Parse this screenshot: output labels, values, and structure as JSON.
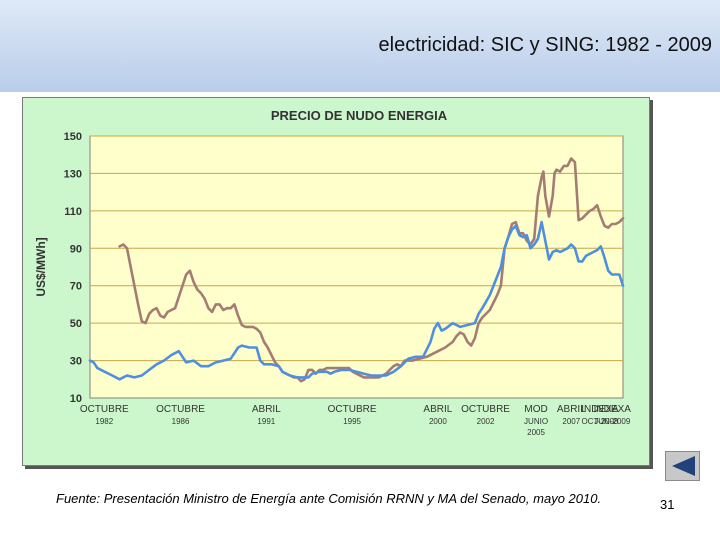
{
  "slide": {
    "title": "electricidad: SIC y SING: 1982 - 2009",
    "footer": "Fuente: Presentación Ministro de Energía ante Comisión RRNN y MA del Senado, mayo 2010.",
    "page_number": "31"
  },
  "navigation": {
    "back_icon": "back-arrow-icon"
  },
  "colors": {
    "plot_bg": "#ffffcc",
    "frame_bg": "#ccf7cc",
    "grid": "#c9a64a",
    "sic": "#4f8fe0",
    "sing": "#a57c74"
  },
  "chart_data": {
    "type": "line",
    "title": "PRECIO DE NUDO ENERGIA",
    "xlabel": "",
    "ylabel": "US$/MWh]",
    "ylim": [
      10,
      150
    ],
    "yticks": [
      10,
      30,
      50,
      70,
      90,
      110,
      130,
      150
    ],
    "x_tick_labels": [
      {
        "x": 1982.75,
        "lines": [
          "OCTUBRE",
          "1982"
        ]
      },
      {
        "x": 1986.75,
        "lines": [
          "OCTUBRE",
          "1986"
        ]
      },
      {
        "x": 1991.25,
        "lines": [
          "ABRIL",
          "1991"
        ]
      },
      {
        "x": 1995.75,
        "lines": [
          "OCTUBRE",
          "1995"
        ]
      },
      {
        "x": 2000.25,
        "lines": [
          "ABRIL",
          "2000"
        ]
      },
      {
        "x": 2002.75,
        "lines": [
          "OCTUBRE",
          "2002"
        ]
      },
      {
        "x": 2005.4,
        "lines": [
          "MOD",
          "JUNIO",
          "2005"
        ]
      },
      {
        "x": 2007.25,
        "lines": [
          "ABRIL",
          "2007"
        ]
      },
      {
        "x": 2008.75,
        "lines": [
          "INDEXA",
          "OCT-2008"
        ]
      },
      {
        "x": 2009.4,
        "lines": [
          "INDEXA",
          "JUN-2009"
        ]
      }
    ],
    "series": [
      {
        "name": "SIC",
        "color": "#4f8fe0",
        "points": [
          [
            0,
            30
          ],
          [
            2,
            29
          ],
          [
            4,
            26
          ],
          [
            8,
            24
          ],
          [
            12,
            22
          ],
          [
            16,
            20
          ],
          [
            20,
            22
          ],
          [
            24,
            21
          ],
          [
            28,
            22
          ],
          [
            32,
            25
          ],
          [
            36,
            28
          ],
          [
            40,
            30
          ],
          [
            44,
            33
          ],
          [
            48,
            35
          ],
          [
            50,
            32
          ],
          [
            52,
            29
          ],
          [
            56,
            30
          ],
          [
            60,
            27
          ],
          [
            64,
            27
          ],
          [
            68,
            29
          ],
          [
            72,
            30
          ],
          [
            76,
            31
          ],
          [
            78,
            34
          ],
          [
            80,
            37
          ],
          [
            82,
            38
          ],
          [
            86,
            37
          ],
          [
            90,
            37
          ],
          [
            92,
            30
          ],
          [
            94,
            28
          ],
          [
            98,
            28
          ],
          [
            102,
            27
          ],
          [
            104,
            24
          ],
          [
            108,
            22
          ],
          [
            112,
            21
          ],
          [
            116,
            21
          ],
          [
            118,
            21
          ],
          [
            120,
            23
          ],
          [
            124,
            24
          ],
          [
            128,
            24
          ],
          [
            130,
            23
          ],
          [
            132,
            24
          ],
          [
            136,
            25
          ],
          [
            140,
            25
          ],
          [
            144,
            24
          ],
          [
            148,
            23
          ],
          [
            152,
            22
          ],
          [
            156,
            22
          ],
          [
            160,
            22
          ],
          [
            164,
            24
          ],
          [
            168,
            27
          ],
          [
            172,
            31
          ],
          [
            176,
            32
          ],
          [
            180,
            32
          ],
          [
            184,
            40
          ],
          [
            186,
            47
          ],
          [
            188,
            50
          ],
          [
            190,
            46
          ],
          [
            192,
            47
          ],
          [
            196,
            50
          ],
          [
            200,
            48
          ],
          [
            204,
            49
          ],
          [
            208,
            50
          ],
          [
            210,
            55
          ],
          [
            212,
            58
          ],
          [
            216,
            65
          ],
          [
            220,
            75
          ],
          [
            222,
            80
          ],
          [
            224,
            90
          ],
          [
            226,
            96
          ],
          [
            228,
            100
          ],
          [
            230,
            102
          ],
          [
            232,
            97
          ],
          [
            234,
            96
          ],
          [
            236,
            97
          ],
          [
            238,
            90
          ],
          [
            240,
            92
          ],
          [
            242,
            95
          ],
          [
            244,
            104
          ],
          [
            246,
            94
          ],
          [
            248,
            84
          ],
          [
            250,
            88
          ],
          [
            252,
            89
          ],
          [
            254,
            88
          ],
          [
            256,
            89
          ],
          [
            258,
            90
          ],
          [
            260,
            92
          ],
          [
            262,
            90
          ],
          [
            264,
            83
          ],
          [
            266,
            83
          ],
          [
            268,
            86
          ],
          [
            270,
            87
          ],
          [
            272,
            88
          ],
          [
            274,
            89
          ],
          [
            276,
            91
          ],
          [
            278,
            85
          ],
          [
            280,
            78
          ],
          [
            282,
            76
          ],
          [
            284,
            76
          ],
          [
            286,
            76
          ],
          [
            288,
            70
          ]
        ]
      },
      {
        "name": "SING",
        "color": "#a57c74",
        "points": [
          [
            16,
            91
          ],
          [
            18,
            92
          ],
          [
            20,
            90
          ],
          [
            22,
            80
          ],
          [
            24,
            70
          ],
          [
            26,
            60
          ],
          [
            28,
            51
          ],
          [
            30,
            50
          ],
          [
            32,
            55
          ],
          [
            34,
            57
          ],
          [
            36,
            58
          ],
          [
            38,
            54
          ],
          [
            40,
            53
          ],
          [
            42,
            56
          ],
          [
            44,
            57
          ],
          [
            46,
            58
          ],
          [
            48,
            64
          ],
          [
            50,
            70
          ],
          [
            52,
            76
          ],
          [
            54,
            78
          ],
          [
            56,
            72
          ],
          [
            58,
            68
          ],
          [
            60,
            66
          ],
          [
            62,
            63
          ],
          [
            64,
            58
          ],
          [
            66,
            56
          ],
          [
            68,
            60
          ],
          [
            70,
            60
          ],
          [
            72,
            57
          ],
          [
            74,
            58
          ],
          [
            76,
            58
          ],
          [
            78,
            60
          ],
          [
            80,
            54
          ],
          [
            82,
            49
          ],
          [
            84,
            48
          ],
          [
            86,
            48
          ],
          [
            88,
            48
          ],
          [
            90,
            47
          ],
          [
            92,
            45
          ],
          [
            94,
            40
          ],
          [
            96,
            37
          ],
          [
            98,
            33
          ],
          [
            100,
            29
          ],
          [
            102,
            27
          ],
          [
            104,
            24
          ],
          [
            106,
            23
          ],
          [
            108,
            22
          ],
          [
            110,
            21
          ],
          [
            112,
            21
          ],
          [
            114,
            19
          ],
          [
            116,
            20
          ],
          [
            118,
            25
          ],
          [
            120,
            25
          ],
          [
            122,
            23
          ],
          [
            124,
            25
          ],
          [
            126,
            25
          ],
          [
            128,
            26
          ],
          [
            132,
            26
          ],
          [
            136,
            26
          ],
          [
            140,
            26
          ],
          [
            142,
            24
          ],
          [
            144,
            23
          ],
          [
            148,
            21
          ],
          [
            152,
            21
          ],
          [
            156,
            21
          ],
          [
            160,
            23
          ],
          [
            162,
            25
          ],
          [
            164,
            27
          ],
          [
            166,
            28
          ],
          [
            168,
            27
          ],
          [
            170,
            30
          ],
          [
            174,
            30
          ],
          [
            178,
            31
          ],
          [
            182,
            32
          ],
          [
            186,
            34
          ],
          [
            188,
            35
          ],
          [
            192,
            37
          ],
          [
            196,
            40
          ],
          [
            198,
            43
          ],
          [
            200,
            45
          ],
          [
            202,
            44
          ],
          [
            204,
            40
          ],
          [
            206,
            38
          ],
          [
            208,
            42
          ],
          [
            210,
            50
          ],
          [
            212,
            53
          ],
          [
            216,
            57
          ],
          [
            220,
            65
          ],
          [
            222,
            70
          ],
          [
            224,
            90
          ],
          [
            226,
            96
          ],
          [
            228,
            103
          ],
          [
            230,
            104
          ],
          [
            232,
            98
          ],
          [
            234,
            98
          ],
          [
            236,
            94
          ],
          [
            238,
            92
          ],
          [
            240,
            95
          ],
          [
            242,
            118
          ],
          [
            244,
            128
          ],
          [
            245,
            131
          ],
          [
            246,
            118
          ],
          [
            248,
            107
          ],
          [
            250,
            118
          ],
          [
            251,
            130
          ],
          [
            252,
            132
          ],
          [
            254,
            131
          ],
          [
            256,
            134
          ],
          [
            258,
            134
          ],
          [
            260,
            138
          ],
          [
            262,
            136
          ],
          [
            264,
            105
          ],
          [
            266,
            106
          ],
          [
            268,
            108
          ],
          [
            270,
            110
          ],
          [
            272,
            111
          ],
          [
            274,
            113
          ],
          [
            276,
            107
          ],
          [
            278,
            102
          ],
          [
            280,
            101
          ],
          [
            282,
            103
          ],
          [
            284,
            103
          ],
          [
            286,
            104
          ],
          [
            288,
            106
          ]
        ]
      }
    ]
  }
}
